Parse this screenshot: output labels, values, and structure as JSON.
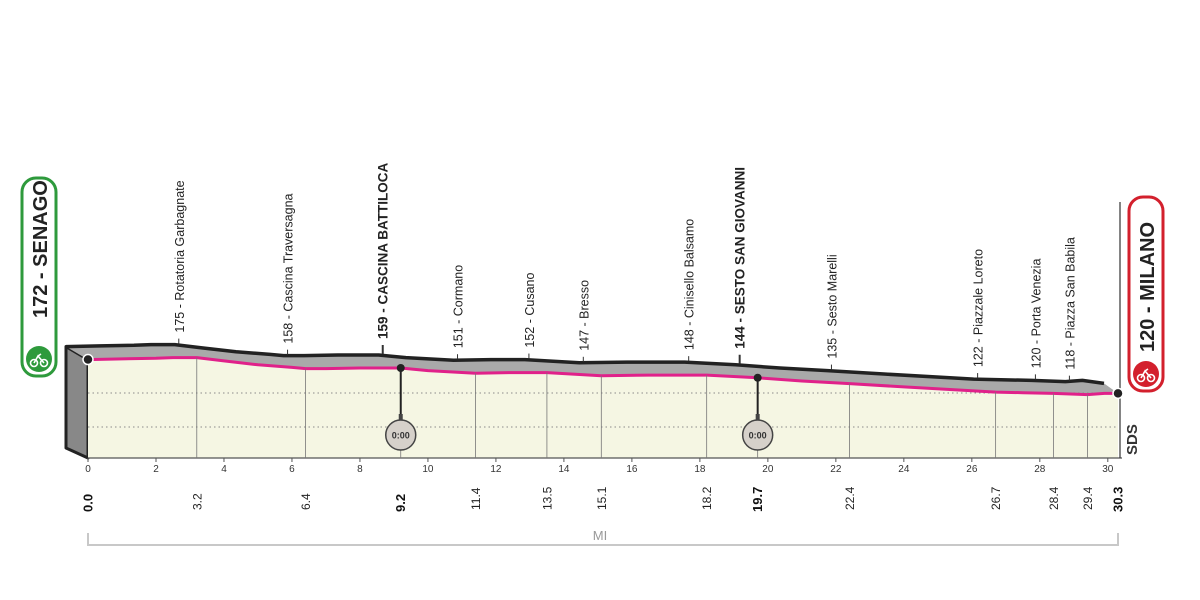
{
  "start": {
    "altitude": "172",
    "name": "SENAGO",
    "label": "172 - SENAGO",
    "color": "#2e9a3c"
  },
  "finish": {
    "altitude": "120",
    "name": "MILANO",
    "label": "120 - MILANO",
    "color": "#d3202d"
  },
  "sds_label": "SDS",
  "x_unit": "MI",
  "chrono_label": "0:00",
  "colors": {
    "road_surface": "#a9a9a9",
    "route_line": "#e0218a",
    "fill": "#f5f6e3",
    "outline": "#222222"
  },
  "chart_data": {
    "type": "area",
    "xlabel": "MI",
    "xlim": [
      0,
      30.3
    ],
    "x_ticks": [
      0,
      2,
      4,
      6,
      8,
      10,
      12,
      14,
      16,
      18,
      20,
      22,
      24,
      26,
      28,
      30
    ],
    "profile": [
      [
        0,
        172
      ],
      [
        1,
        173
      ],
      [
        2,
        174
      ],
      [
        2.5,
        175
      ],
      [
        3.2,
        175
      ],
      [
        4,
        170
      ],
      [
        5,
        164
      ],
      [
        6,
        160
      ],
      [
        6.4,
        158
      ],
      [
        7,
        158
      ],
      [
        8,
        159
      ],
      [
        9.2,
        159
      ],
      [
        10,
        155
      ],
      [
        11.4,
        151
      ],
      [
        12.5,
        152
      ],
      [
        13.5,
        152
      ],
      [
        15.1,
        147
      ],
      [
        16.5,
        148
      ],
      [
        18.2,
        148
      ],
      [
        19.7,
        144
      ],
      [
        21,
        139
      ],
      [
        22.4,
        135
      ],
      [
        24,
        130
      ],
      [
        26,
        124
      ],
      [
        26.7,
        122
      ],
      [
        27.5,
        121
      ],
      [
        28.4,
        120
      ],
      [
        29.4,
        118
      ],
      [
        29.9,
        120
      ],
      [
        30.3,
        120
      ]
    ],
    "waypoints": [
      {
        "km": "0.0",
        "x": 0,
        "label": "",
        "bold": true
      },
      {
        "km": "3.2",
        "x": 3.2,
        "label": "175 - Rotatoria Garbagnate",
        "bold": false
      },
      {
        "km": "6.4",
        "x": 6.4,
        "label": "158 - Cascina Traversagna",
        "bold": false
      },
      {
        "km": "9.2",
        "x": 9.2,
        "label": "159 - CASCINA BATTILOCA",
        "bold": true,
        "chrono": true
      },
      {
        "km": "11.4",
        "x": 11.4,
        "label": "151 - Cormano",
        "bold": false
      },
      {
        "km": "13.5",
        "x": 13.5,
        "label": "152 - Cusano",
        "bold": false
      },
      {
        "km": "15.1",
        "x": 15.1,
        "label": "147 - Bresso",
        "bold": false
      },
      {
        "km": "18.2",
        "x": 18.2,
        "label": "148 - Cinisello Balsamo",
        "bold": false
      },
      {
        "km": "19.7",
        "x": 19.7,
        "label": "144 - SESTO SAN GIOVANNI",
        "bold": true,
        "chrono": true
      },
      {
        "km": "22.4",
        "x": 22.4,
        "label": "135 - Sesto Marelli",
        "bold": false
      },
      {
        "km": "26.7",
        "x": 26.7,
        "label": "122 - Piazzale Loreto",
        "bold": false
      },
      {
        "km": "28.4",
        "x": 28.4,
        "label": "120 - Porta Venezia",
        "bold": false
      },
      {
        "km": "29.4",
        "x": 29.4,
        "label": "118 - Piazza San Babila",
        "bold": false
      },
      {
        "km": "30.3",
        "x": 30.3,
        "label": "",
        "bold": true
      }
    ]
  }
}
